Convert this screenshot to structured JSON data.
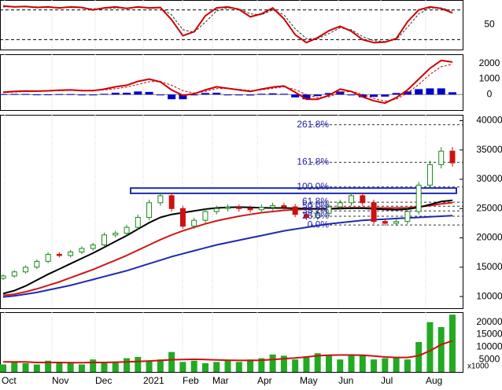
{
  "chart_data": {
    "type": "candlestick",
    "months": [
      "Oct",
      "Nov",
      "Dec",
      "2021",
      "Feb",
      "Mar",
      "Apr",
      "May",
      "Jun",
      "Jul",
      "Aug"
    ],
    "panels": {
      "stochastic": {
        "ylim": [
          0,
          100
        ],
        "ticks": [
          50
        ],
        "tick_labels": [
          "50"
        ],
        "bands": [
          80,
          20
        ],
        "k_line": [
          88,
          86,
          87,
          85,
          86,
          84,
          86,
          85,
          80,
          84,
          86,
          83,
          86,
          84,
          85,
          60,
          28,
          36,
          68,
          84,
          86,
          81,
          66,
          72,
          84,
          62,
          30,
          14,
          24,
          38,
          47,
          37,
          20,
          14,
          15,
          22,
          56,
          80,
          86,
          83,
          74
        ],
        "d_line": [
          86,
          86,
          86,
          86,
          85,
          85,
          85,
          84,
          82,
          83,
          84,
          84,
          85,
          84,
          84,
          70,
          40,
          35,
          55,
          78,
          84,
          82,
          72,
          70,
          80,
          70,
          42,
          22,
          22,
          32,
          44,
          40,
          26,
          18,
          16,
          20,
          45,
          72,
          84,
          84,
          78
        ]
      },
      "macd": {
        "ylim": [
          -1000,
          2600
        ],
        "ticks": [
          2000,
          1000,
          0
        ],
        "tick_labels": [
          "2000",
          "1000",
          "0"
        ],
        "macd_line": [
          150,
          200,
          230,
          220,
          240,
          280,
          300,
          260,
          250,
          350,
          500,
          600,
          850,
          1000,
          820,
          300,
          -50,
          50,
          300,
          500,
          400,
          300,
          200,
          350,
          480,
          550,
          150,
          -300,
          -300,
          -50,
          350,
          200,
          -150,
          -400,
          -550,
          -200,
          300,
          1000,
          1700,
          2200,
          2100
        ],
        "signal_line": [
          120,
          160,
          190,
          210,
          230,
          250,
          270,
          270,
          260,
          300,
          380,
          480,
          650,
          830,
          850,
          600,
          250,
          100,
          200,
          380,
          400,
          340,
          260,
          300,
          400,
          500,
          330,
          0,
          -200,
          -150,
          150,
          200,
          20,
          -250,
          -420,
          -300,
          100,
          650,
          1300,
          1800,
          1950
        ],
        "histogram": [
          30,
          40,
          40,
          10,
          10,
          30,
          30,
          -10,
          -10,
          50,
          120,
          120,
          200,
          170,
          -30,
          -300,
          -300,
          -50,
          100,
          120,
          0,
          -40,
          -60,
          50,
          80,
          50,
          -180,
          -300,
          -100,
          100,
          200,
          0,
          -170,
          -150,
          -130,
          100,
          200,
          350,
          400,
          400,
          150
        ]
      },
      "price": {
        "ylim": [
          8000,
          41000
        ],
        "ticks": [
          40000,
          35000,
          30000,
          25000,
          20000,
          15000,
          10000
        ],
        "tick_labels": [
          "40000",
          "35000",
          "30000",
          "25000",
          "20000",
          "15000",
          "10000"
        ],
        "close": [
          13500,
          14200,
          15000,
          16000,
          17200,
          17000,
          17600,
          18200,
          18800,
          20500,
          20800,
          21800,
          23500,
          26000,
          27200,
          25000,
          22000,
          23000,
          24500,
          25000,
          25200,
          25000,
          24800,
          25200,
          25500,
          25300,
          24000,
          23500,
          24200,
          25300,
          26000,
          27200,
          26000,
          22800,
          22500,
          22800,
          24500,
          29000,
          32500,
          34800,
          32800
        ],
        "ma_black": [
          10500,
          11000,
          11800,
          12800,
          13800,
          14700,
          15600,
          16500,
          17400,
          18400,
          19400,
          20400,
          21500,
          22600,
          23500,
          24000,
          24300,
          24600,
          24900,
          25100,
          25200,
          25250,
          25200,
          25150,
          25100,
          25100,
          25050,
          25000,
          24950,
          24950,
          25000,
          25050,
          25050,
          24950,
          24850,
          24800,
          24900,
          25200,
          25700,
          26200,
          26400
        ],
        "ma_red": [
          10200,
          10400,
          10800,
          11300,
          11900,
          12500,
          13200,
          13900,
          14600,
          15400,
          16200,
          17000,
          17900,
          18800,
          19700,
          20500,
          21200,
          21800,
          22400,
          22900,
          23300,
          23700,
          24000,
          24300,
          24500,
          24700,
          24800,
          24900,
          24950,
          25000,
          25100,
          25150,
          25150,
          25100,
          25100,
          25100,
          25150,
          25300,
          25500,
          25800,
          26000
        ],
        "ma_blue": [
          9900,
          10100,
          10400,
          10700,
          11100,
          11500,
          11900,
          12400,
          12900,
          13400,
          13900,
          14400,
          15000,
          15600,
          16200,
          16800,
          17300,
          17800,
          18300,
          18800,
          19200,
          19600,
          20000,
          20400,
          20800,
          21200,
          21500,
          21800,
          22100,
          22400,
          22600,
          22800,
          23000,
          23100,
          23200,
          23300,
          23400,
          23500,
          23600,
          23700,
          23800
        ],
        "fibonacci": [
          {
            "label": "261.8%",
            "value": 39300
          },
          {
            "label": "161.8%",
            "value": 32900
          },
          {
            "label": "100.0%",
            "value": 28700
          },
          {
            "label": "61.8%",
            "value": 26100
          },
          {
            "label": "50.0%",
            "value": 25400
          },
          {
            "label": "38.2%",
            "value": 24600
          },
          {
            "label": "23.6%",
            "value": 23700
          },
          {
            "label": "0.0%",
            "value": 22200
          }
        ],
        "resistance_zone": [
          27600,
          28500
        ]
      },
      "volume": {
        "ylim": [
          0,
          24000
        ],
        "unit_label": "x1000",
        "ticks": [
          20000,
          15000,
          10000,
          5000
        ],
        "tick_labels": [
          "20000",
          "15000",
          "10000",
          "5000"
        ],
        "volume": [
          3000,
          4000,
          3500,
          3000,
          4500,
          3500,
          4000,
          3000,
          5000,
          3500,
          4000,
          5500,
          6000,
          4500,
          5000,
          8000,
          4000,
          4500,
          3500,
          4000,
          4500,
          4000,
          5000,
          5500,
          7000,
          6500,
          5000,
          6000,
          7500,
          6500,
          5000,
          7000,
          6500,
          5000,
          5500,
          6000,
          5000,
          12000,
          20000,
          18000,
          23000
        ],
        "ma_volume": [
          4000,
          4000,
          4000,
          3800,
          3800,
          3800,
          3700,
          3700,
          3800,
          3800,
          3900,
          4000,
          4200,
          4400,
          4600,
          4900,
          5000,
          5100,
          5000,
          4800,
          4700,
          4600,
          4600,
          4700,
          5000,
          5300,
          5600,
          6000,
          6500,
          6700,
          6800,
          6800,
          6700,
          6400,
          6000,
          5800,
          5800,
          6500,
          8500,
          11000,
          12500
        ]
      }
    }
  }
}
